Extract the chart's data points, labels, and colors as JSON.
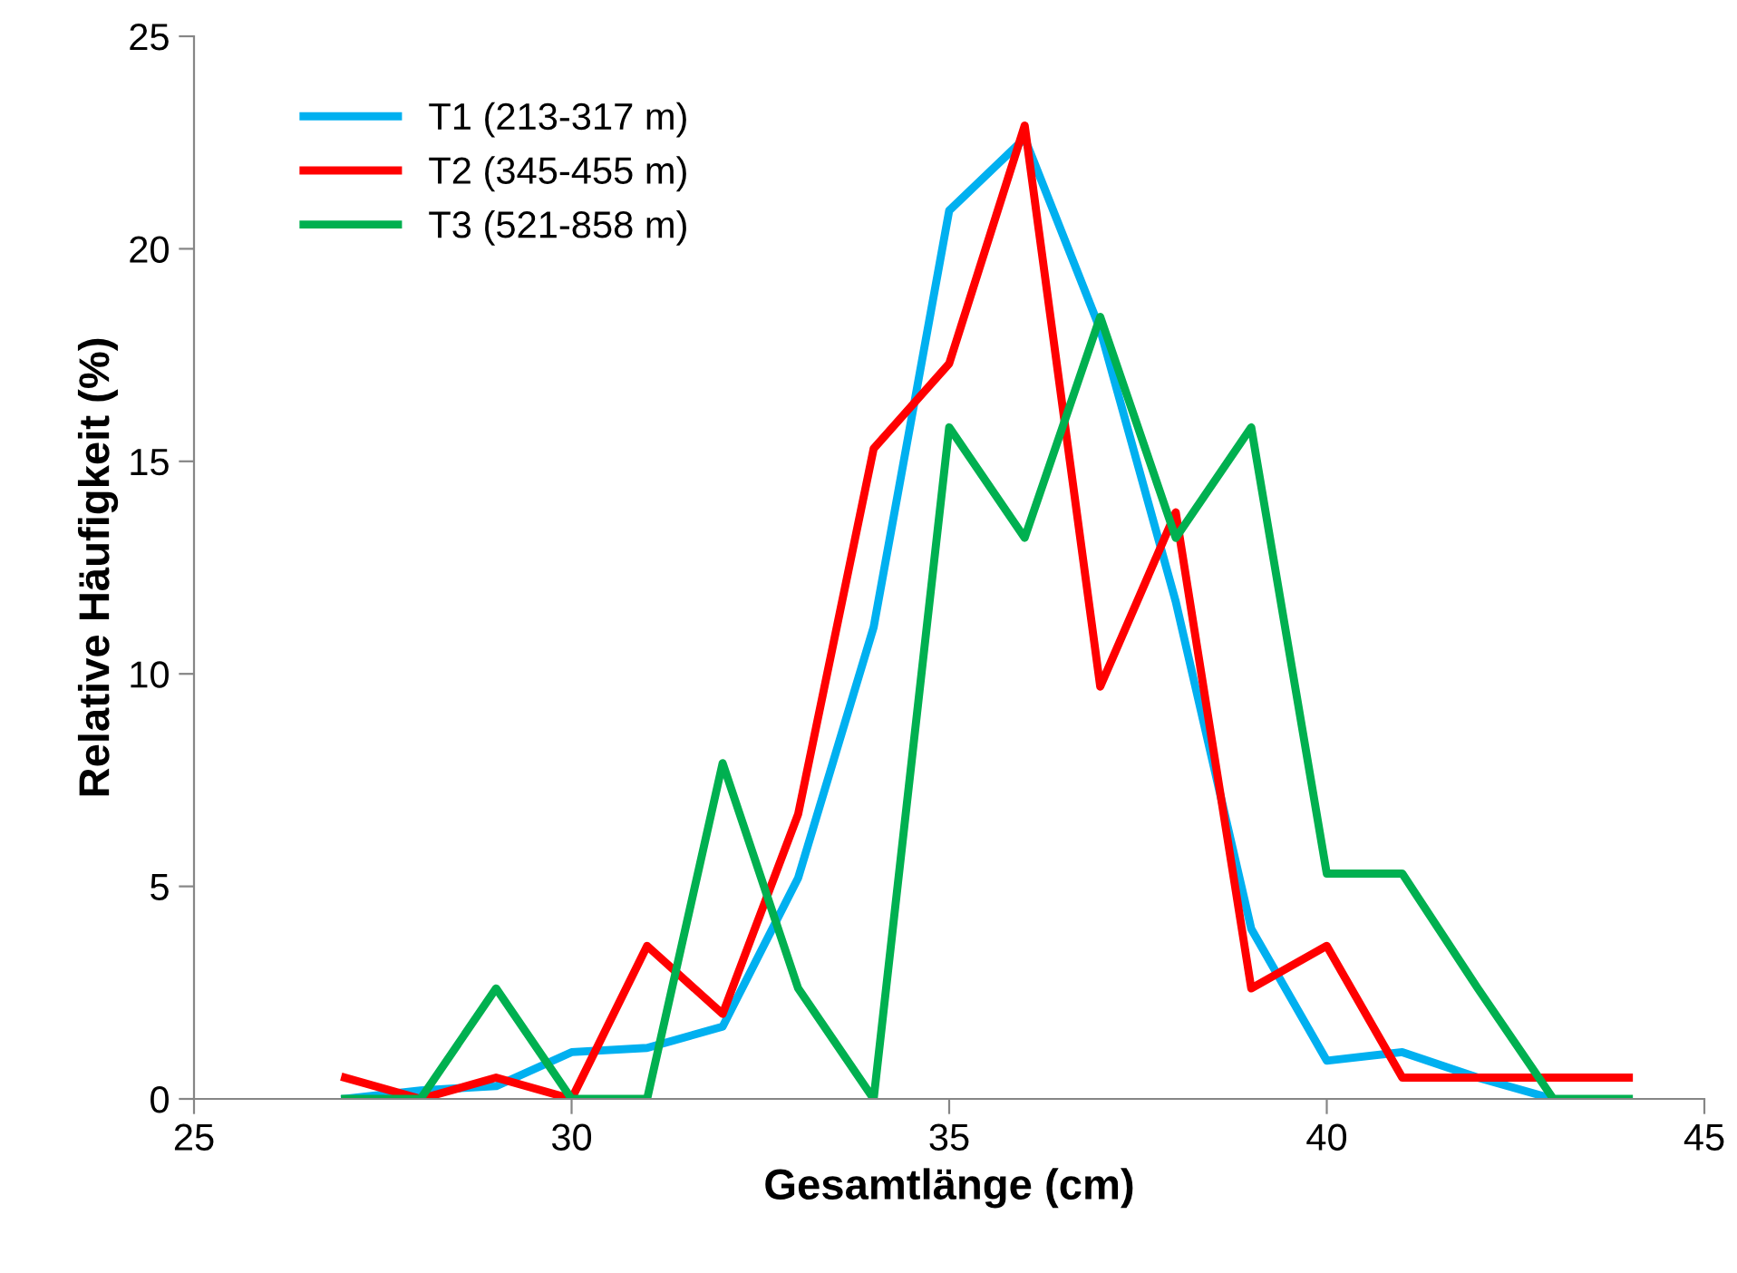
{
  "chart_data": {
    "type": "line",
    "xlabel": "Gesamtlänge (cm)",
    "ylabel": "Relative Häufigkeit (%)",
    "xlim": [
      25,
      45
    ],
    "xticks": [
      25,
      30,
      35,
      40,
      45
    ],
    "ylim": [
      0,
      25
    ],
    "yticks": [
      0,
      5,
      10,
      15,
      20,
      25
    ],
    "grid": false,
    "legend": "top left",
    "marker": "none",
    "line_style": "solid",
    "series": [
      {
        "name": "T1 (213-317 m)",
        "color": "#00b0f0",
        "x": [
          27,
          28,
          29,
          30,
          31,
          32,
          33,
          34,
          35,
          36,
          37,
          38,
          39,
          40,
          41,
          42,
          43
        ],
        "values": [
          0,
          0.2,
          0.3,
          1.1,
          1.2,
          1.7,
          5.2,
          11.1,
          20.9,
          22.6,
          18.1,
          11.7,
          4.0,
          0.9,
          1.1,
          0.5,
          0
        ]
      },
      {
        "name": "T2 (345-455 m)",
        "color": "#ff0000",
        "x": [
          27,
          28,
          29,
          30,
          31,
          32,
          33,
          34,
          35,
          36,
          37,
          38,
          39,
          40,
          41,
          42,
          43,
          44
        ],
        "values": [
          0.5,
          0,
          0.5,
          0,
          3.6,
          2.0,
          6.7,
          15.3,
          17.3,
          22.9,
          9.7,
          13.8,
          2.6,
          3.6,
          0.5,
          0.5,
          0.5,
          0.5
        ]
      },
      {
        "name": "T3 (521-858 m)",
        "color": "#00b050",
        "x": [
          27,
          28,
          29,
          30,
          31,
          32,
          33,
          34,
          35,
          36,
          37,
          38,
          39,
          40,
          41,
          42,
          43,
          44
        ],
        "values": [
          0,
          0,
          2.6,
          0,
          0,
          7.9,
          2.6,
          0,
          15.8,
          13.2,
          18.4,
          13.2,
          15.8,
          5.3,
          5.3,
          2.6,
          0,
          0
        ]
      }
    ]
  }
}
